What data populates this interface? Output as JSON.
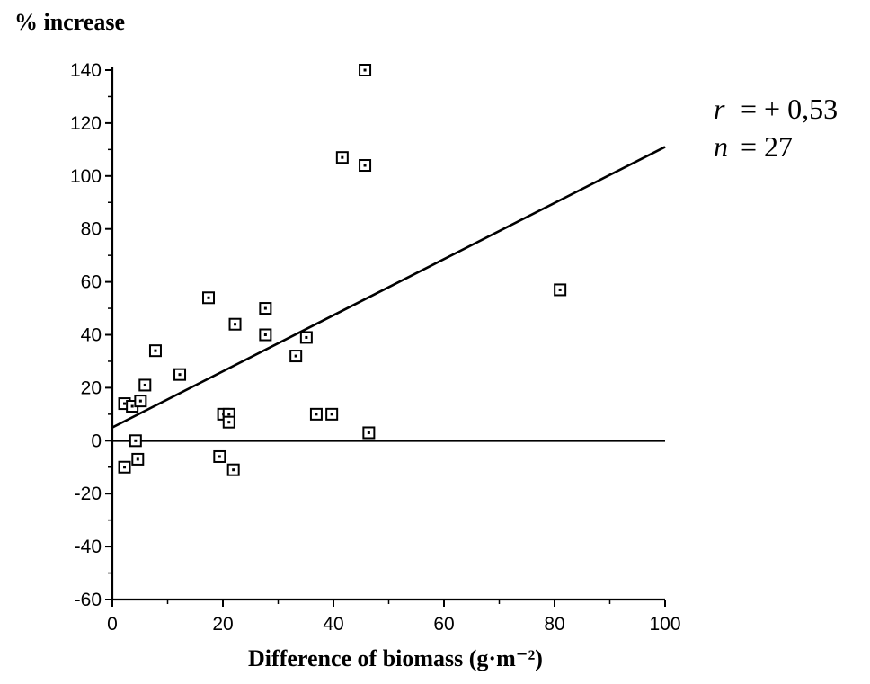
{
  "chart_data": {
    "type": "scatter",
    "ylabel": "% increase",
    "xlabel": "Difference of biomass (g·m⁻²)",
    "xlim": [
      0,
      100
    ],
    "ylim": [
      -60,
      140
    ],
    "xticks": [
      0,
      20,
      40,
      60,
      80,
      100
    ],
    "yticks": [
      -60,
      -40,
      -20,
      0,
      20,
      40,
      60,
      80,
      100,
      120,
      140
    ],
    "marker": "square-dot",
    "grid": false,
    "stats": [
      {
        "symbol": "r",
        "value": "= + 0,53"
      },
      {
        "symbol": "n",
        "value": "= 27"
      }
    ],
    "regression_line": {
      "x": [
        0,
        100
      ],
      "y": [
        5,
        111
      ]
    },
    "zero_line": {
      "x": [
        0,
        100
      ],
      "y": [
        0,
        0
      ]
    },
    "points": [
      {
        "x": 2.2,
        "y": 14
      },
      {
        "x": 3.6,
        "y": 13
      },
      {
        "x": 4.2,
        "y": 0
      },
      {
        "x": 5.1,
        "y": 15
      },
      {
        "x": 5.9,
        "y": 21
      },
      {
        "x": 7.8,
        "y": 34
      },
      {
        "x": 2.2,
        "y": -10
      },
      {
        "x": 4.6,
        "y": -7
      },
      {
        "x": 12.2,
        "y": 25
      },
      {
        "x": 17.4,
        "y": 54
      },
      {
        "x": 19.4,
        "y": -6
      },
      {
        "x": 20.1,
        "y": 10
      },
      {
        "x": 21.1,
        "y": 10
      },
      {
        "x": 21.1,
        "y": 7
      },
      {
        "x": 21.9,
        "y": -11
      },
      {
        "x": 22.2,
        "y": 44
      },
      {
        "x": 27.7,
        "y": 50
      },
      {
        "x": 27.7,
        "y": 40
      },
      {
        "x": 33.2,
        "y": 32
      },
      {
        "x": 35.1,
        "y": 39
      },
      {
        "x": 36.9,
        "y": 10
      },
      {
        "x": 39.7,
        "y": 10
      },
      {
        "x": 41.6,
        "y": 107
      },
      {
        "x": 45.7,
        "y": 140
      },
      {
        "x": 45.7,
        "y": 104
      },
      {
        "x": 46.4,
        "y": 3
      },
      {
        "x": 81,
        "y": 57
      }
    ]
  }
}
